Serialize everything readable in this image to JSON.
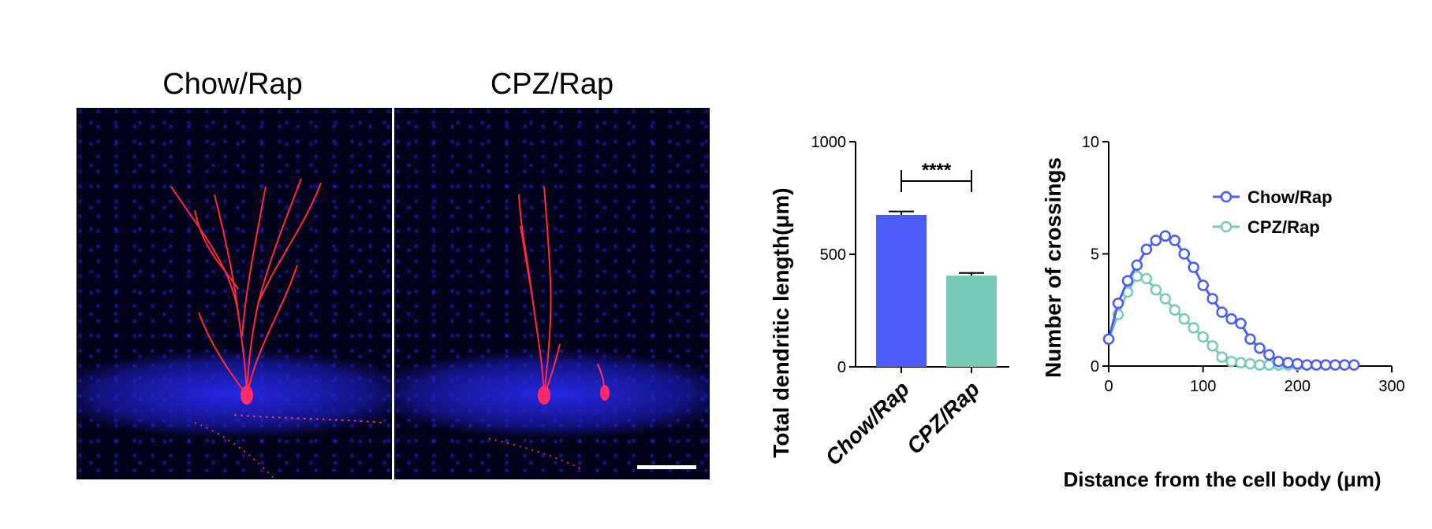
{
  "panels": {
    "left_title": "Chow/Rap",
    "right_title": "CPZ/Rap"
  },
  "colors": {
    "chow": "#4a5cf5",
    "cpz": "#76cbb8",
    "nuclei": "#2630e0",
    "neuron": "#ff2a3a"
  },
  "chart_data": [
    {
      "type": "bar",
      "ylabel": "Total dendritic length(μm)",
      "categories": [
        "Chow/Rap",
        "CPZ/Rap"
      ],
      "values": [
        675,
        405
      ],
      "errors": [
        15,
        12
      ],
      "ylim": [
        0,
        1000
      ],
      "yticks": [
        "0",
        "500",
        "1000"
      ],
      "significance": "****"
    },
    {
      "type": "line",
      "xlabel": "Distance from the cell body (μm)",
      "ylabel": "Number of crossings",
      "xlim": [
        0,
        300
      ],
      "ylim": [
        0,
        10
      ],
      "xticks": [
        "0",
        "100",
        "200",
        "300"
      ],
      "yticks": [
        "0",
        "5",
        "10"
      ],
      "series": [
        {
          "name": "Chow/Rap",
          "x": [
            0,
            10,
            20,
            30,
            40,
            50,
            60,
            70,
            80,
            90,
            100,
            110,
            120,
            130,
            140,
            150,
            160,
            170,
            180,
            190,
            200,
            210,
            220,
            230,
            240,
            250,
            260
          ],
          "y": [
            1.2,
            2.8,
            3.8,
            4.5,
            5.2,
            5.6,
            5.8,
            5.6,
            5.0,
            4.4,
            3.6,
            3.0,
            2.4,
            2.1,
            1.9,
            1.2,
            0.8,
            0.5,
            0.2,
            0.15,
            0.1,
            0.05,
            0.05,
            0.05,
            0.05,
            0.05,
            0.05
          ],
          "err": [
            0.2,
            0.2,
            0.2,
            0.2,
            0.2,
            0.2,
            0.2,
            0.2,
            0.2,
            0.2,
            0.2,
            0.2,
            0.2,
            0.2,
            0.2,
            0.15,
            0.15,
            0.1,
            0.1,
            0.1,
            0.05,
            0.05,
            0.05,
            0.05,
            0.05,
            0.05,
            0.05
          ]
        },
        {
          "name": "CPZ/Rap",
          "x": [
            0,
            10,
            20,
            30,
            40,
            50,
            60,
            70,
            80,
            90,
            100,
            110,
            120,
            130,
            140,
            150,
            160,
            170,
            180,
            190,
            200
          ],
          "y": [
            1.2,
            2.3,
            3.3,
            4.0,
            3.9,
            3.4,
            3.0,
            2.5,
            2.1,
            1.7,
            1.3,
            0.9,
            0.4,
            0.2,
            0.15,
            0.1,
            0.05,
            0.05,
            0.05,
            0.05,
            0.05
          ],
          "err": [
            0.2,
            0.2,
            0.2,
            0.2,
            0.2,
            0.2,
            0.2,
            0.2,
            0.2,
            0.2,
            0.15,
            0.15,
            0.1,
            0.1,
            0.05,
            0.05,
            0.05,
            0.05,
            0.05,
            0.05,
            0.05
          ]
        }
      ],
      "legend": "top-right"
    }
  ]
}
